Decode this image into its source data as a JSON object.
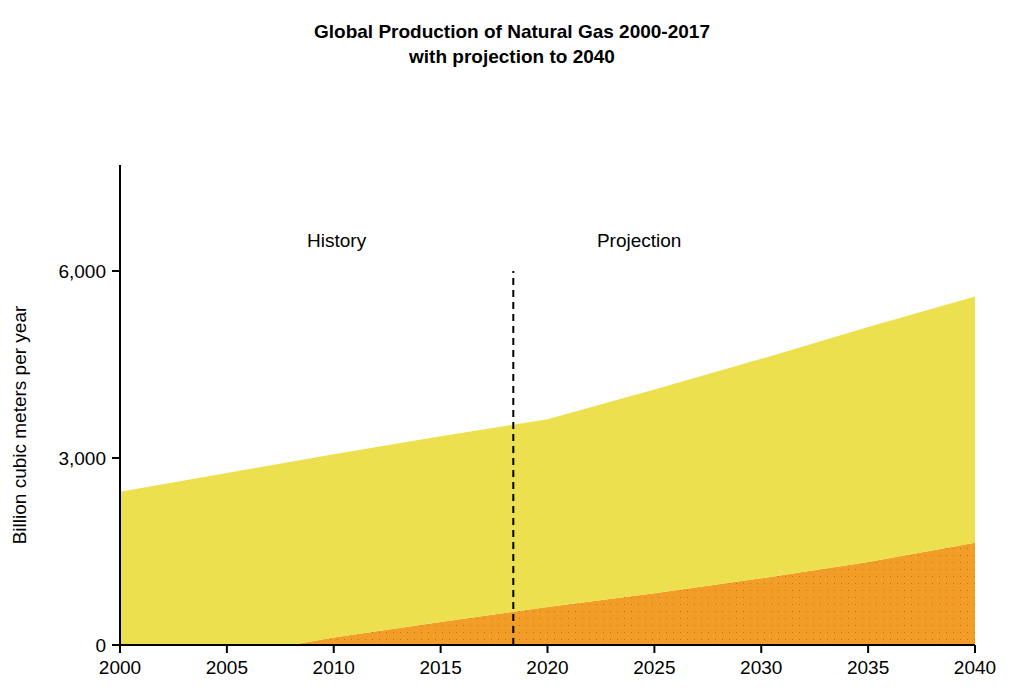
{
  "chart_data": {
    "type": "area",
    "stacked": true,
    "title": "Global Production of Natural Gas 2000-2017",
    "subtitle": "with projection to 2040",
    "y_label": "Billion cubic meters per year",
    "annotations": [
      "History",
      "Projection"
    ],
    "projection_start": 2018.4,
    "x": [
      2000,
      2005,
      2008,
      2010,
      2015,
      2020,
      2025,
      2030,
      2035,
      2040
    ],
    "series": [
      {
        "color": "#f39c26",
        "values": [
          0,
          0,
          0,
          120,
          370,
          610,
          830,
          1070,
          1330,
          1640
        ]
      },
      {
        "color": "#ede04f",
        "values": [
          2460,
          2760,
          2940,
          2940,
          2980,
          3010,
          3270,
          3520,
          3770,
          3950
        ]
      }
    ],
    "xlim": [
      2000,
      2040
    ],
    "xticks": [
      2000,
      2005,
      2010,
      2015,
      2020,
      2025,
      2030,
      2035,
      2040
    ],
    "ylim": [
      0,
      7700
    ],
    "yticks": [
      0,
      {
        "value": 3000,
        "label": "3,000"
      },
      {
        "value": 6000,
        "label": "6,000"
      }
    ],
    "grid": false
  }
}
